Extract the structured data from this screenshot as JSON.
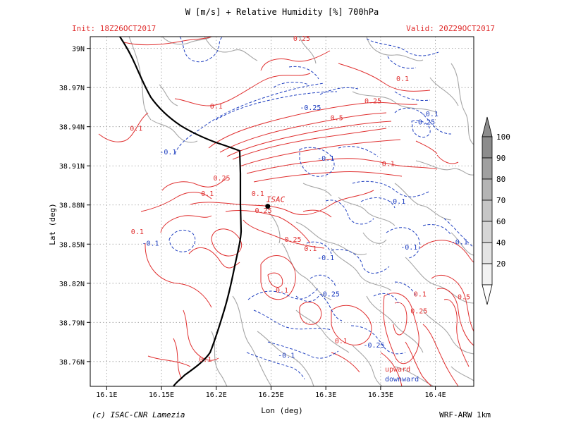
{
  "header": {
    "title": "W [m/s] + Relative Humidity [%] 700hPa",
    "init": "Init: 18Z26OCT2017",
    "valid": "Valid: 20Z29OCT2017"
  },
  "axes": {
    "xlabel": "Lon (deg)",
    "ylabel": "Lat (deg)",
    "x_ticks": [
      "16.1E",
      "16.15E",
      "16.2E",
      "16.25E",
      "16.3E",
      "16.35E",
      "16.4E"
    ],
    "y_ticks": [
      "39N",
      "38.97N",
      "38.94N",
      "38.91N",
      "38.88N",
      "38.85N",
      "38.82N",
      "38.79N",
      "38.76N"
    ]
  },
  "colorbar": {
    "labels": [
      "100",
      "90",
      "80",
      "70",
      "60",
      "40",
      "20"
    ],
    "shades": [
      "#8c8c8c",
      "#a0a0a0",
      "#b4b4b4",
      "#c6c6c6",
      "#d6d6d6",
      "#e4e4e4",
      "#f2f2f2"
    ]
  },
  "station": {
    "name": "ISAC",
    "lon": 16.247,
    "lat": 38.879
  },
  "legend": {
    "upward": "upward",
    "downward": "downward",
    "upward_color": "#e03030",
    "downward_color": "#2040c0"
  },
  "contour_labels": [
    {
      "text": "0.25",
      "lon": 16.278,
      "lat": 39.008,
      "kind": "up"
    },
    {
      "text": "0.1",
      "lon": 16.37,
      "lat": 38.977,
      "kind": "up"
    },
    {
      "text": "0.1",
      "lon": 16.2,
      "lat": 38.956,
      "kind": "up"
    },
    {
      "text": "0.1",
      "lon": 16.127,
      "lat": 38.939,
      "kind": "up"
    },
    {
      "text": "-0.25",
      "lon": 16.286,
      "lat": 38.955,
      "kind": "down"
    },
    {
      "text": "0.25",
      "lon": 16.343,
      "lat": 38.96,
      "kind": "up"
    },
    {
      "text": "0.5",
      "lon": 16.31,
      "lat": 38.947,
      "kind": "up"
    },
    {
      "text": "-0.1",
      "lon": 16.395,
      "lat": 38.95,
      "kind": "down"
    },
    {
      "text": "-0.25",
      "lon": 16.39,
      "lat": 38.944,
      "kind": "down"
    },
    {
      "text": "-0.1",
      "lon": 16.156,
      "lat": 38.921,
      "kind": "down"
    },
    {
      "text": "-0.1",
      "lon": 16.3,
      "lat": 38.916,
      "kind": "down"
    },
    {
      "text": "0.1",
      "lon": 16.357,
      "lat": 38.912,
      "kind": "up"
    },
    {
      "text": "0.25",
      "lon": 16.205,
      "lat": 38.901,
      "kind": "up"
    },
    {
      "text": "0.1",
      "lon": 16.192,
      "lat": 38.889,
      "kind": "up"
    },
    {
      "text": "0.1",
      "lon": 16.238,
      "lat": 38.889,
      "kind": "up"
    },
    {
      "text": "-0.1",
      "lon": 16.365,
      "lat": 38.883,
      "kind": "down"
    },
    {
      "text": "0.25",
      "lon": 16.243,
      "lat": 38.876,
      "kind": "up"
    },
    {
      "text": "0.1",
      "lon": 16.128,
      "lat": 38.86,
      "kind": "up"
    },
    {
      "text": "-0.1",
      "lon": 16.14,
      "lat": 38.851,
      "kind": "down"
    },
    {
      "text": "0.25",
      "lon": 16.27,
      "lat": 38.854,
      "kind": "up"
    },
    {
      "text": "0.1",
      "lon": 16.286,
      "lat": 38.847,
      "kind": "up"
    },
    {
      "text": "-0.1",
      "lon": 16.376,
      "lat": 38.848,
      "kind": "down"
    },
    {
      "text": "-0.1",
      "lon": 16.422,
      "lat": 38.852,
      "kind": "down"
    },
    {
      "text": "-0.1",
      "lon": 16.3,
      "lat": 38.84,
      "kind": "down"
    },
    {
      "text": "0.1",
      "lon": 16.26,
      "lat": 38.815,
      "kind": "up"
    },
    {
      "text": "-0.25",
      "lon": 16.303,
      "lat": 38.812,
      "kind": "down"
    },
    {
      "text": "0.1",
      "lon": 16.386,
      "lat": 38.812,
      "kind": "up"
    },
    {
      "text": "0.5",
      "lon": 16.426,
      "lat": 38.81,
      "kind": "up"
    },
    {
      "text": "0.25",
      "lon": 16.385,
      "lat": 38.799,
      "kind": "up"
    },
    {
      "text": "0.1",
      "lon": 16.314,
      "lat": 38.776,
      "kind": "up"
    },
    {
      "text": "-0.25",
      "lon": 16.344,
      "lat": 38.773,
      "kind": "down"
    },
    {
      "text": "-0.1",
      "lon": 16.264,
      "lat": 38.765,
      "kind": "down"
    },
    {
      "text": "0.1",
      "lon": 16.19,
      "lat": 38.762,
      "kind": "up"
    }
  ],
  "footer": {
    "credit": "(c) ISAC-CNR Lamezia",
    "model": "WRF-ARW 1km"
  }
}
